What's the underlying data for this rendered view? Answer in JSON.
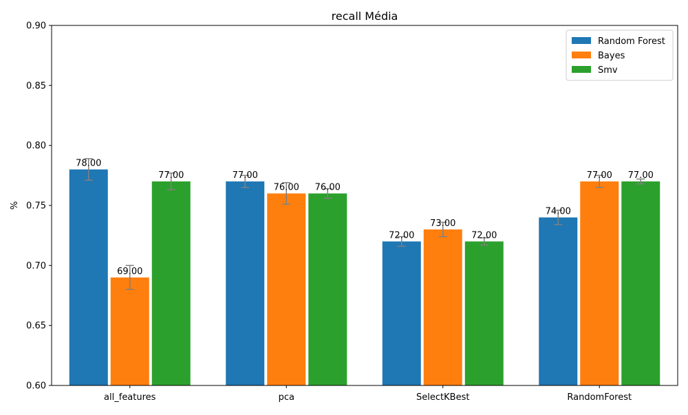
{
  "chart_data": {
    "type": "bar",
    "title": "recall Média",
    "xlabel": "",
    "ylabel": "%",
    "ylim": [
      0.6,
      0.9
    ],
    "yticks": [
      "0.60",
      "0.65",
      "0.70",
      "0.75",
      "0.80",
      "0.85",
      "0.90"
    ],
    "categories": [
      "all_features",
      "pca",
      "SelectKBest",
      "RandomForest"
    ],
    "series": [
      {
        "name": "Random Forest",
        "color": "#1f77b4",
        "values": [
          0.78,
          0.77,
          0.72,
          0.74
        ],
        "errors": [
          0.009,
          0.005,
          0.004,
          0.006
        ],
        "labels": [
          "78.00",
          "77.00",
          "72.00",
          "74.00"
        ]
      },
      {
        "name": "Bayes",
        "color": "#ff7f0e",
        "values": [
          0.69,
          0.76,
          0.73,
          0.77
        ],
        "errors": [
          0.01,
          0.009,
          0.006,
          0.005
        ],
        "labels": [
          "69.00",
          "76.00",
          "73.00",
          "77.00"
        ]
      },
      {
        "name": "Smv",
        "color": "#2ca02c",
        "values": [
          0.77,
          0.76,
          0.72,
          0.77
        ],
        "errors": [
          0.007,
          0.004,
          0.003,
          0.002
        ],
        "labels": [
          "77.00",
          "76.00",
          "72.00",
          "77.00"
        ]
      }
    ],
    "error_bar_color": "#808080",
    "legend_position": "top-right",
    "grid": false
  }
}
